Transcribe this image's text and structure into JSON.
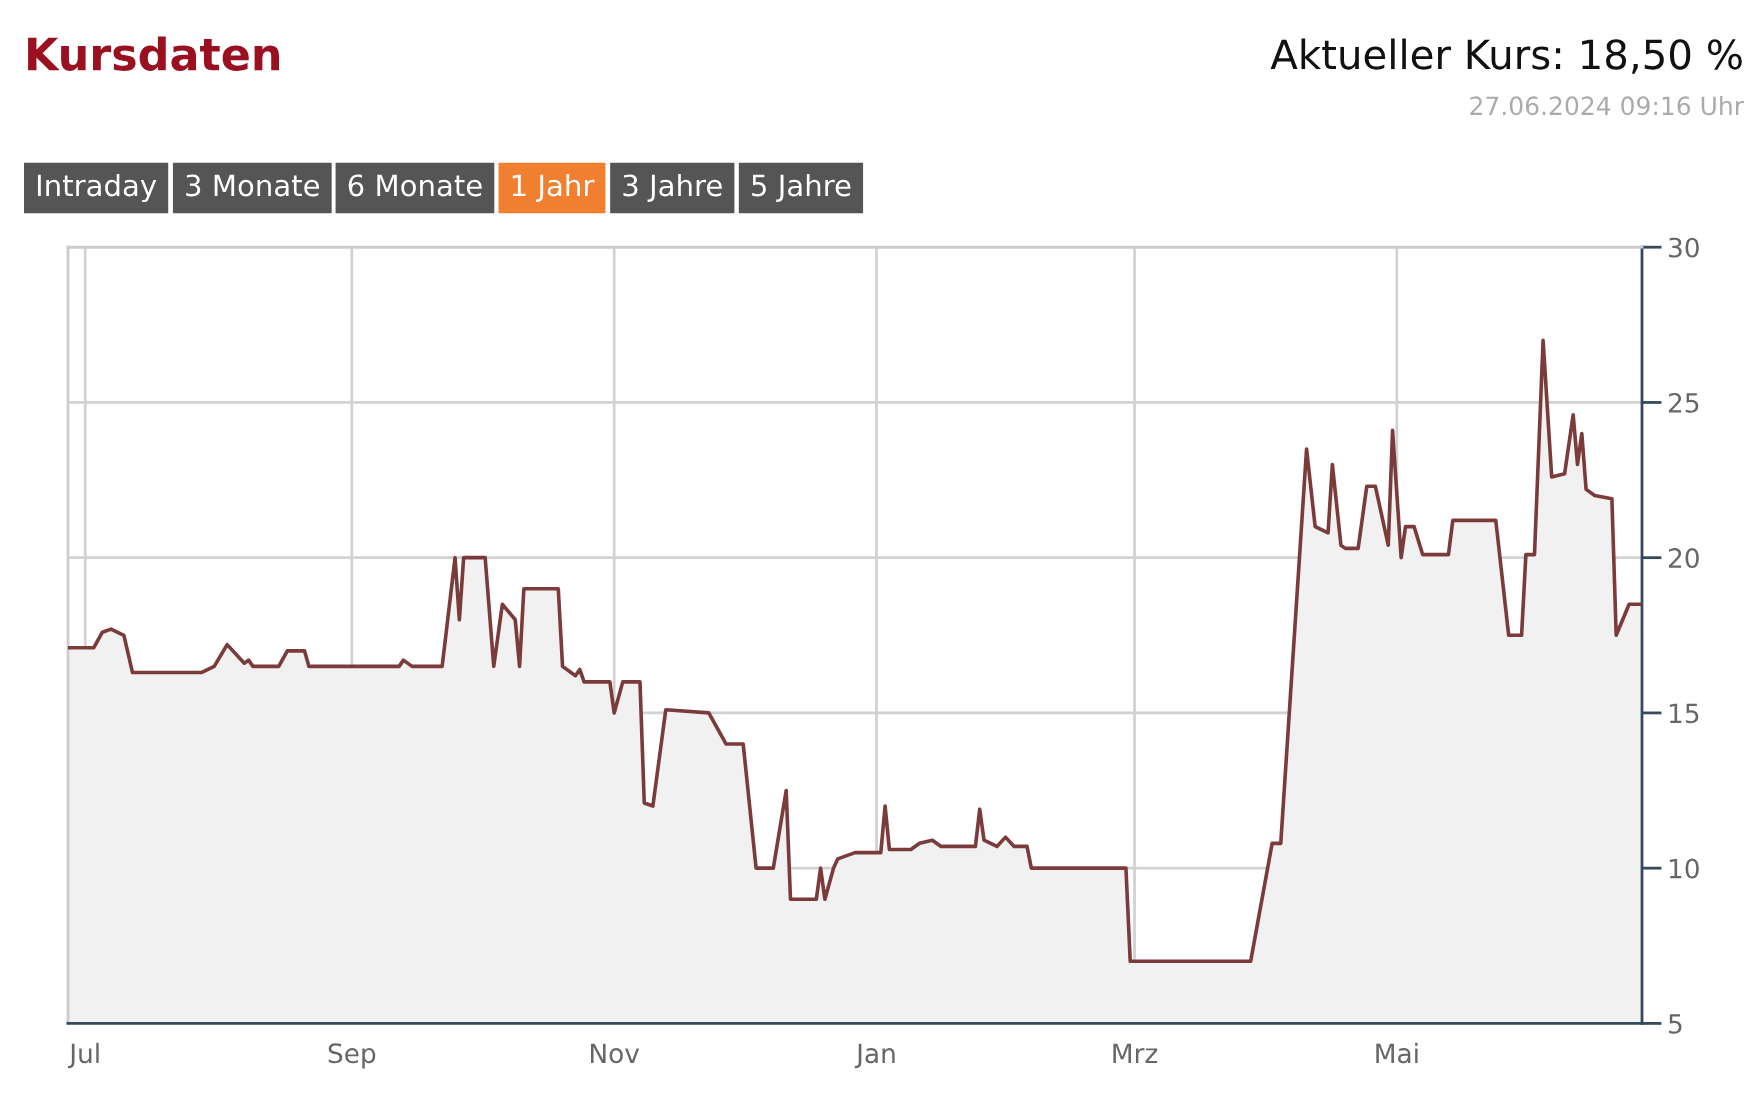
{
  "chart_data": {
    "type": "area",
    "title": "Kursdaten",
    "subtitle": "Aktueller Kurs: 18,50 %",
    "annotations": [
      "27.06.2024 09:16 Uhr",
      "Intraday",
      "3 Monate",
      "6 Monate",
      "1 Jahr",
      "3 Jahre",
      "5 Jahre"
    ],
    "x": [
      "2023-06-27",
      "2023-07-03",
      "2023-07-05",
      "2023-07-07",
      "2023-07-10",
      "2023-07-12",
      "2023-07-28",
      "2023-07-31",
      "2023-08-03",
      "2023-08-07",
      "2023-08-08",
      "2023-08-09",
      "2023-08-15",
      "2023-08-17",
      "2023-08-21",
      "2023-08-22",
      "2023-09-12",
      "2023-09-13",
      "2023-09-15",
      "2023-09-22",
      "2023-09-25",
      "2023-09-26",
      "2023-09-27",
      "2023-10-02",
      "2023-10-04",
      "2023-10-06",
      "2023-10-09",
      "2023-10-10",
      "2023-10-11",
      "2023-10-19",
      "2023-10-20",
      "2023-10-23",
      "2023-10-24",
      "2023-10-25",
      "2023-10-31",
      "2023-11-01",
      "2023-11-03",
      "2023-11-07",
      "2023-11-08",
      "2023-11-10",
      "2023-11-13",
      "2023-11-23",
      "2023-11-27",
      "2023-12-01",
      "2023-12-04",
      "2023-12-08",
      "2023-12-11",
      "2023-12-12",
      "2023-12-18",
      "2023-12-19",
      "2023-12-20",
      "2023-12-22",
      "2023-12-23",
      "2023-12-27",
      "2024-01-02",
      "2024-01-03",
      "2024-01-04",
      "2024-01-09",
      "2024-01-11",
      "2024-01-14",
      "2024-01-16",
      "2024-01-24",
      "2024-01-25",
      "2024-01-26",
      "2024-01-29",
      "2024-01-31",
      "2024-02-02",
      "2024-02-05",
      "2024-02-06",
      "2024-02-28",
      "2024-02-29",
      "2024-03-28",
      "2024-04-02",
      "2024-04-04",
      "2024-04-10",
      "2024-04-12",
      "2024-04-15",
      "2024-04-16",
      "2024-04-18",
      "2024-04-19",
      "2024-04-22",
      "2024-04-24",
      "2024-04-26",
      "2024-04-29",
      "2024-04-30",
      "2024-05-02",
      "2024-05-03",
      "2024-05-05",
      "2024-05-07",
      "2024-05-13",
      "2024-05-14",
      "2024-05-24",
      "2024-05-27",
      "2024-05-30",
      "2024-05-31",
      "2024-06-02",
      "2024-06-04",
      "2024-06-06",
      "2024-06-09",
      "2024-06-11",
      "2024-06-12",
      "2024-06-13",
      "2024-06-14",
      "2024-06-16",
      "2024-06-20",
      "2024-06-21",
      "2024-06-24",
      "2024-06-27"
    ],
    "series": [
      {
        "color": "#7b3b3b",
        "values": [
          17.1,
          17.1,
          17.6,
          17.7,
          17.5,
          16.3,
          16.3,
          16.5,
          17.2,
          16.6,
          16.7,
          16.5,
          16.5,
          17.0,
          17.0,
          16.5,
          16.5,
          16.7,
          16.5,
          16.5,
          20.0,
          18.0,
          20.0,
          20.0,
          16.5,
          18.5,
          18.0,
          16.5,
          19.0,
          19.0,
          16.5,
          16.2,
          16.4,
          16.0,
          16.0,
          15.0,
          16.0,
          16.0,
          12.1,
          12.0,
          15.1,
          15.0,
          14.0,
          14.0,
          10.0,
          10.0,
          12.5,
          9.0,
          9.0,
          10.0,
          9.0,
          10.0,
          10.3,
          10.5,
          10.5,
          12.0,
          10.6,
          10.6,
          10.8,
          10.9,
          10.7,
          10.7,
          11.9,
          10.9,
          10.7,
          11.0,
          10.7,
          10.7,
          10.0,
          10.0,
          7.0,
          7.0,
          10.8,
          10.8,
          23.5,
          21.0,
          20.8,
          23.0,
          20.4,
          20.3,
          20.3,
          22.3,
          22.3,
          20.4,
          24.1,
          20.0,
          21.0,
          21.0,
          20.1,
          20.1,
          21.2,
          21.2,
          17.5,
          17.5,
          20.1,
          20.1,
          27.0,
          22.6,
          22.7,
          24.6,
          23.0,
          24.0,
          22.2,
          22.0,
          21.9,
          17.5,
          18.5,
          18.5
        ]
      }
    ],
    "xlim": [
      "2023-06-27",
      "2024-06-27"
    ],
    "xticks": [
      {
        "value": "2023-07-01",
        "label": "Jul"
      },
      {
        "value": "2023-09-01",
        "label": "Sep"
      },
      {
        "value": "2023-11-01",
        "label": "Nov"
      },
      {
        "value": "2024-01-01",
        "label": "Jan"
      },
      {
        "value": "2024-03-01",
        "label": "Mrz"
      },
      {
        "value": "2024-05-01",
        "label": "Mai"
      }
    ],
    "ylim": [
      5,
      30
    ],
    "yticks": [
      5,
      10,
      15,
      20,
      25,
      30
    ],
    "grid": true
  }
}
